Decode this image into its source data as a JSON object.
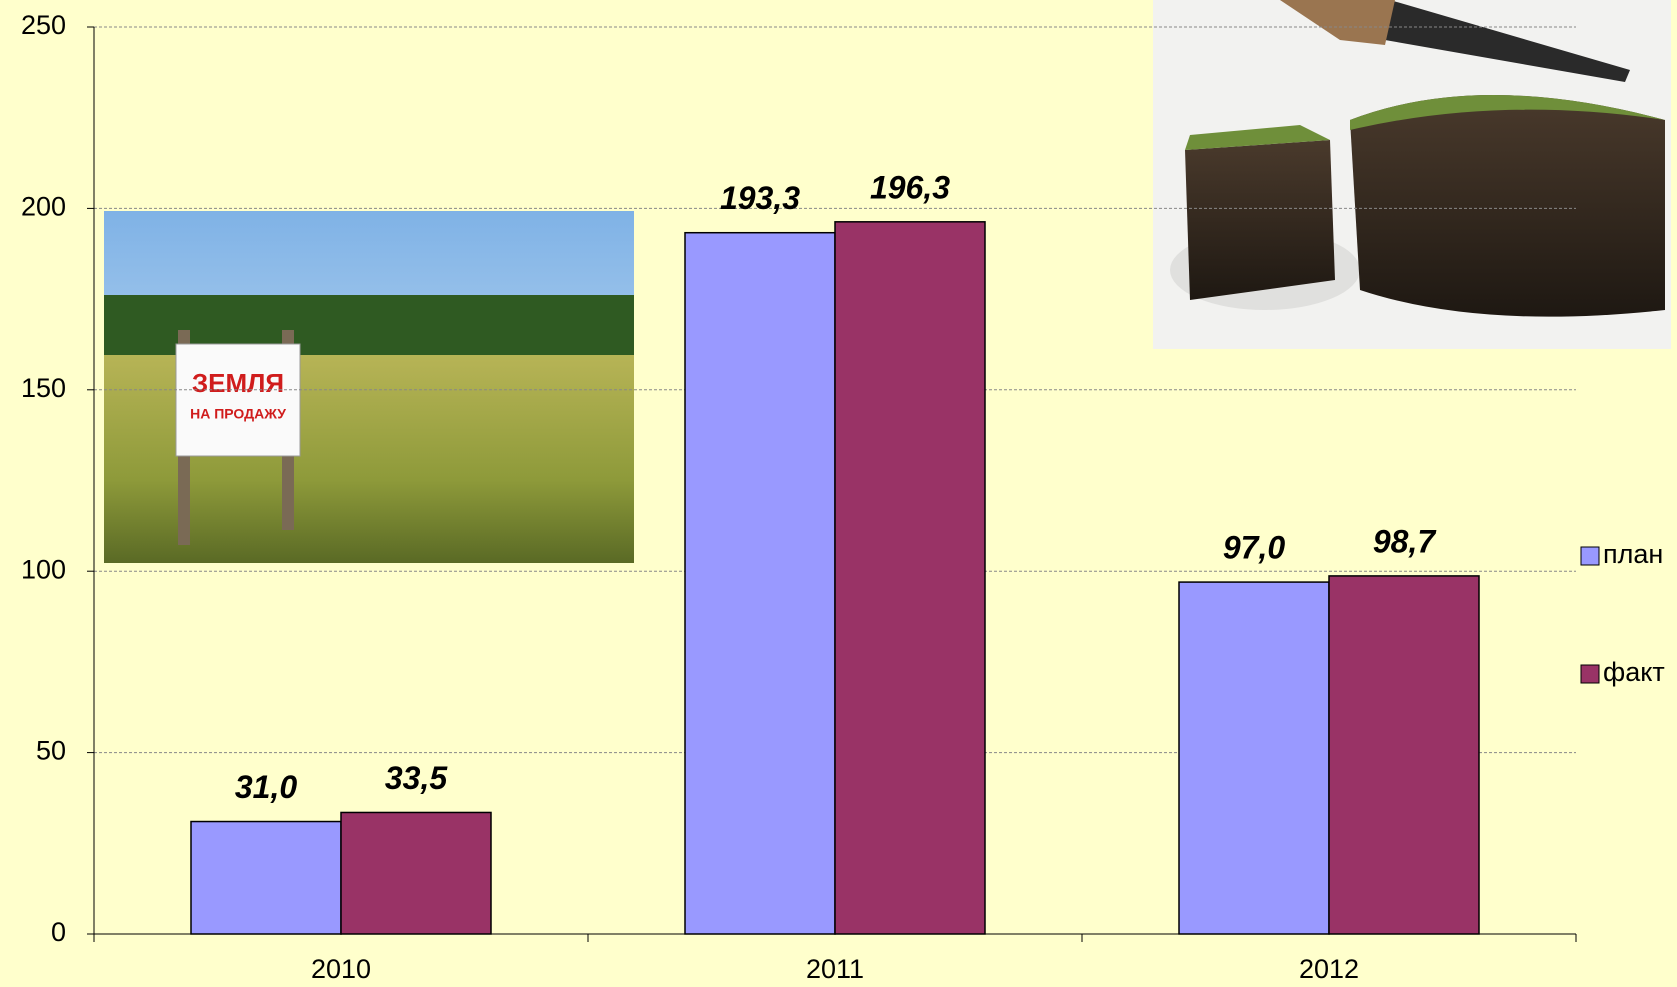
{
  "chart_data": {
    "type": "bar",
    "categories": [
      "2010",
      "2011",
      "2012"
    ],
    "series": [
      {
        "name": "план",
        "color": "#9999ff",
        "values": [
          31.0,
          193.3,
          97.0
        ],
        "value_labels": [
          "31,0",
          "193,3",
          "97,0"
        ]
      },
      {
        "name": "факт",
        "color": "#993366",
        "values": [
          33.5,
          196.3,
          98.7
        ],
        "value_labels": [
          "33,5",
          "196,3",
          "98,7"
        ]
      }
    ],
    "ylim": [
      0,
      250
    ],
    "yticks": [
      0,
      50,
      100,
      150,
      200,
      250
    ],
    "grid": true,
    "legend": "right",
    "annotations": [
      "ЗЕМЛЯ",
      "НА ПРОДАЖУ"
    ]
  }
}
